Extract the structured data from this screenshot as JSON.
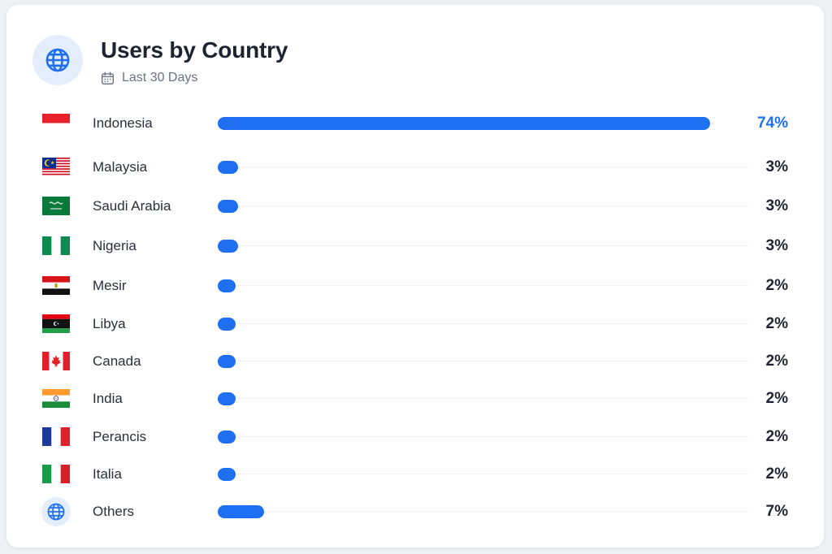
{
  "header": {
    "title": "Users by Country",
    "subtitle": "Last 30 Days",
    "icon": "globe-icon",
    "calendar_icon": "calendar-icon"
  },
  "colors": {
    "accent": "#1f6ff2",
    "badge_bg": "#e3edfb"
  },
  "chart_data": {
    "type": "bar",
    "orientation": "horizontal",
    "title": "Users by Country",
    "subtitle": "Last 30 Days",
    "categories": [
      "Indonesia",
      "Malaysia",
      "Saudi Arabia",
      "Nigeria",
      "Mesir",
      "Libya",
      "Canada",
      "India",
      "Perancis",
      "Italia",
      "Others"
    ],
    "values": [
      74,
      3,
      3,
      3,
      2,
      2,
      2,
      2,
      2,
      2,
      7
    ],
    "value_labels": [
      "74%",
      "3%",
      "3%",
      "3%",
      "2%",
      "2%",
      "2%",
      "2%",
      "2%",
      "2%",
      "7%"
    ],
    "xlim": [
      0,
      74
    ],
    "grid": false,
    "legend": "none"
  },
  "rows": [
    {
      "country": "Indonesia",
      "value": 74,
      "label": "74%",
      "flag": "indonesia-flag-icon"
    },
    {
      "country": "Malaysia",
      "value": 3,
      "label": "3%",
      "flag": "malaysia-flag-icon"
    },
    {
      "country": "Saudi Arabia",
      "value": 3,
      "label": "3%",
      "flag": "saudi-arabia-flag-icon"
    },
    {
      "country": "Nigeria",
      "value": 3,
      "label": "3%",
      "flag": "nigeria-flag-icon"
    },
    {
      "country": "Mesir",
      "value": 2,
      "label": "2%",
      "flag": "egypt-flag-icon"
    },
    {
      "country": "Libya",
      "value": 2,
      "label": "2%",
      "flag": "libya-flag-icon"
    },
    {
      "country": "Canada",
      "value": 2,
      "label": "2%",
      "flag": "canada-flag-icon"
    },
    {
      "country": "India",
      "value": 2,
      "label": "2%",
      "flag": "india-flag-icon"
    },
    {
      "country": "Perancis",
      "value": 2,
      "label": "2%",
      "flag": "france-flag-icon"
    },
    {
      "country": "Italia",
      "value": 2,
      "label": "2%",
      "flag": "italy-flag-icon"
    },
    {
      "country": "Others",
      "value": 7,
      "label": "7%",
      "flag": "globe-icon"
    }
  ]
}
